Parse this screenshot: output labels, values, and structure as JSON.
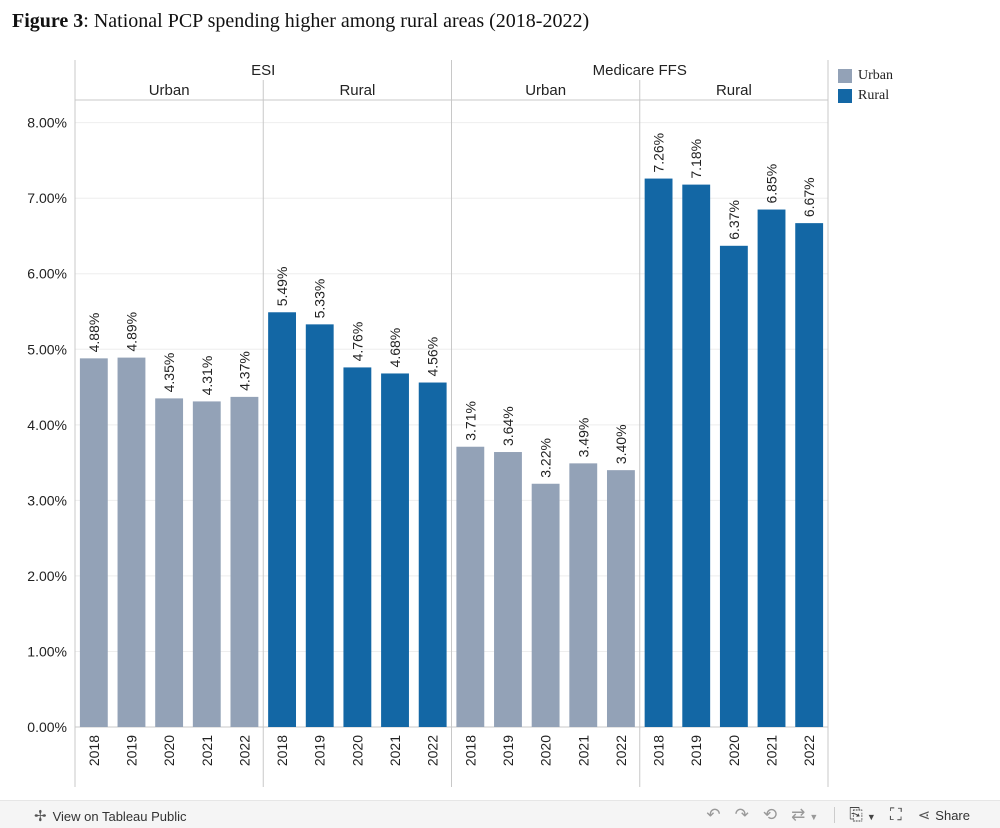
{
  "figure": {
    "label": "Figure 3",
    "title": ": National PCP spending higher among rural areas (2018-2022)"
  },
  "legend": {
    "items": [
      {
        "label": "Urban",
        "color": "#93a2b7"
      },
      {
        "label": "Rural",
        "color": "#1367a5"
      }
    ]
  },
  "chart_data": {
    "type": "bar",
    "title": "National PCP spending higher among rural areas (2018-2022)",
    "xlabel": "",
    "ylabel": "",
    "ylim": [
      0,
      8.3
    ],
    "y_ticks": [
      0,
      1,
      2,
      3,
      4,
      5,
      6,
      7,
      8
    ],
    "y_tick_labels": [
      "0.00%",
      "1.00%",
      "2.00%",
      "3.00%",
      "4.00%",
      "5.00%",
      "6.00%",
      "7.00%",
      "8.00%"
    ],
    "categories": [
      "2018",
      "2019",
      "2020",
      "2021",
      "2022"
    ],
    "groups": [
      {
        "name": "ESI",
        "subgroups": [
          {
            "name": "Urban",
            "color": "#93a2b7",
            "values": [
              4.88,
              4.89,
              4.35,
              4.31,
              4.37
            ],
            "labels": [
              "4.88%",
              "4.89%",
              "4.35%",
              "4.31%",
              "4.37%"
            ]
          },
          {
            "name": "Rural",
            "color": "#1367a5",
            "values": [
              5.49,
              5.33,
              4.76,
              4.68,
              4.56
            ],
            "labels": [
              "5.49%",
              "5.33%",
              "4.76%",
              "4.68%",
              "4.56%"
            ]
          }
        ]
      },
      {
        "name": "Medicare FFS",
        "subgroups": [
          {
            "name": "Urban",
            "color": "#93a2b7",
            "values": [
              3.71,
              3.64,
              3.22,
              3.49,
              3.4
            ],
            "labels": [
              "3.71%",
              "3.64%",
              "3.22%",
              "3.49%",
              "3.40%"
            ]
          },
          {
            "name": "Rural",
            "color": "#1367a5",
            "values": [
              7.26,
              7.18,
              6.37,
              6.85,
              6.67
            ],
            "labels": [
              "7.26%",
              "7.18%",
              "6.37%",
              "6.85%",
              "6.67%"
            ]
          }
        ]
      }
    ]
  },
  "footer": {
    "view_label": "View on Tableau Public",
    "share_label": "Share"
  }
}
